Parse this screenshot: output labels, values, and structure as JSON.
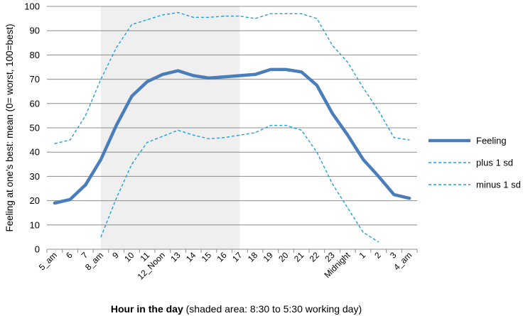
{
  "chart_data": {
    "type": "line",
    "categories": [
      "5_am",
      "6",
      "7",
      "8_am",
      "9",
      "10",
      "11",
      "12_Noon",
      "13",
      "14",
      "15",
      "16",
      "17",
      "18",
      "19",
      "20",
      "21",
      "22",
      "23",
      "Midnight",
      "1",
      "2",
      "3",
      "4_am"
    ],
    "series": [
      {
        "name": "Feeling",
        "values": [
          19,
          20.5,
          26.5,
          37,
          51,
          63,
          69,
          72,
          73.5,
          71.5,
          70.5,
          71,
          71.5,
          72,
          74,
          74,
          73,
          67.5,
          56,
          47,
          37,
          30,
          22.5,
          21
        ],
        "color": "#4a7ebb",
        "style": "solid"
      },
      {
        "name": "plus 1 sd",
        "values": [
          43.5,
          45,
          55,
          70,
          83,
          92.5,
          94.5,
          96.5,
          97.5,
          95.5,
          95.5,
          96,
          96,
          95,
          97,
          97,
          97,
          95,
          84,
          77,
          66.5,
          57,
          46,
          45
        ],
        "color": "#1e9fdb",
        "style": "dashed"
      },
      {
        "name": "minus 1 sd",
        "values": [
          null,
          null,
          null,
          5,
          21,
          35,
          44,
          46.5,
          49,
          47,
          45.5,
          46,
          47,
          48,
          51,
          51,
          49,
          40,
          27,
          17,
          7,
          3,
          null,
          null
        ],
        "color": "#1e9fdb",
        "style": "dashed"
      }
    ],
    "ylabel": "Feeling at one's best: mean (0= worst, 100=best)",
    "xlabel_bold": "Hour in the day",
    "xlabel_rest": " (shaded area: 8:30 to 5:30 working day)",
    "ylim": [
      0,
      100
    ],
    "yticks": [
      0,
      10,
      20,
      30,
      40,
      50,
      60,
      70,
      80,
      90,
      100
    ],
    "shaded_range": [
      3.5,
      12.5
    ],
    "shade_color": "#efefef",
    "grid": true,
    "legend_position": "right"
  }
}
